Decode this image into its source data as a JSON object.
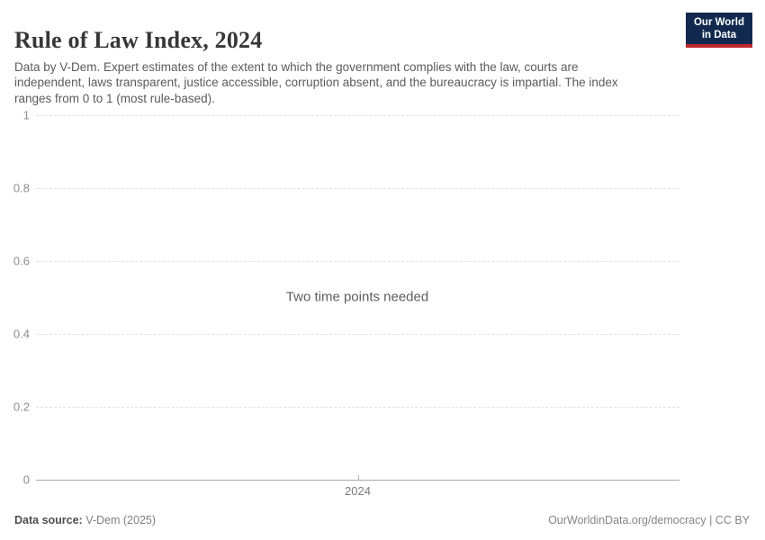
{
  "header": {
    "title": "Rule of Law Index, 2024",
    "subtitle": "Data by V-Dem. Expert estimates of the extent to which the government complies with the law, courts are independent, laws transparent, justice accessible, corruption absent, and the bureaucracy is impartial. The index ranges from 0 to 1 (most rule-based)."
  },
  "logo": {
    "line1": "Our World",
    "line2": "in Data"
  },
  "chart_data": {
    "type": "line",
    "title": "Rule of Law Index, 2024",
    "series": [],
    "x_ticks": [
      {
        "label": "2024"
      }
    ],
    "y_ticks": [
      {
        "value": 0,
        "label": "0"
      },
      {
        "value": 0.2,
        "label": "0.2"
      },
      {
        "value": 0.4,
        "label": "0.4"
      },
      {
        "value": 0.6,
        "label": "0.6"
      },
      {
        "value": 0.8,
        "label": "0.8"
      },
      {
        "value": 1,
        "label": "1"
      }
    ],
    "ylim": [
      0,
      1
    ],
    "grid": true,
    "legend": "none",
    "empty_state_message": "Two time points needed"
  },
  "footer": {
    "source_label": "Data source:",
    "source_value": "V-Dem (2025)",
    "attribution": "OurWorldinData.org/democracy | CC BY"
  },
  "colors": {
    "logo_navy": "#12294F",
    "logo_red": "#C0272D",
    "gridline": "#e0e0e0",
    "axis_line": "#a8a8a8"
  }
}
